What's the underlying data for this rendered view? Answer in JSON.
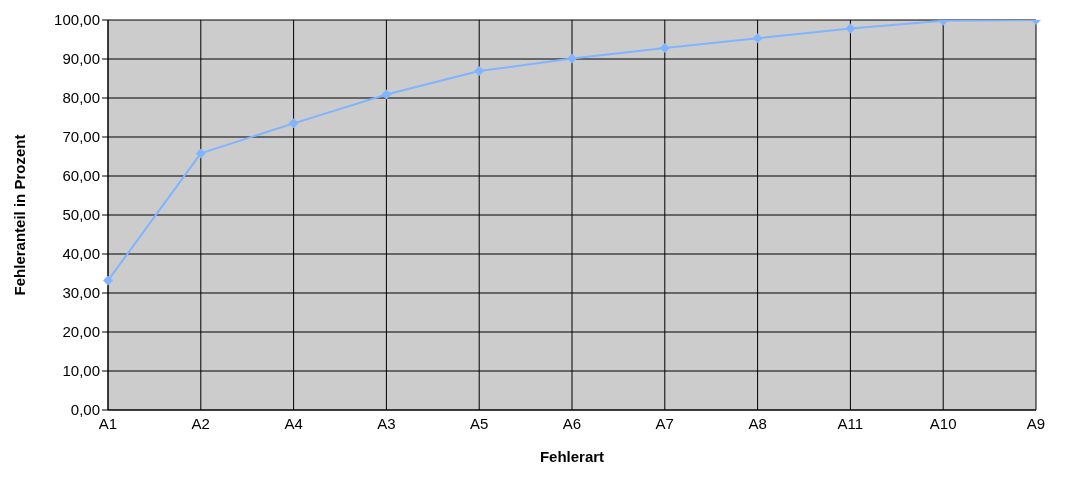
{
  "chart_data": {
    "type": "line",
    "xlabel": "Fehlerart",
    "ylabel": "Fehleranteil in Prozent",
    "categories": [
      "A1",
      "A2",
      "A4",
      "A3",
      "A5",
      "A6",
      "A7",
      "A8",
      "A11",
      "A10",
      "A9"
    ],
    "series": [
      {
        "color": "#80b4ff",
        "values": [
          33.2,
          65.8,
          73.5,
          80.9,
          86.9,
          90.1,
          92.8,
          95.3,
          97.8,
          99.8,
          100
        ]
      }
    ],
    "ylim": [
      0,
      100
    ],
    "yticks": [
      {
        "value": 0,
        "label": "0,00"
      },
      {
        "value": 10,
        "label": "10,00"
      },
      {
        "value": 20,
        "label": "20,00"
      },
      {
        "value": 30,
        "label": "30,00"
      },
      {
        "value": 40,
        "label": "40,00"
      },
      {
        "value": 50,
        "label": "50,00"
      },
      {
        "value": 60,
        "label": "60,00"
      },
      {
        "value": 70,
        "label": "70,00"
      },
      {
        "value": 80,
        "label": "80,00"
      },
      {
        "value": 90,
        "label": "90,00"
      },
      {
        "value": 100,
        "label": "100,00"
      }
    ],
    "grid": true,
    "legend": false,
    "marker": "diamond",
    "line_style": "solid"
  }
}
